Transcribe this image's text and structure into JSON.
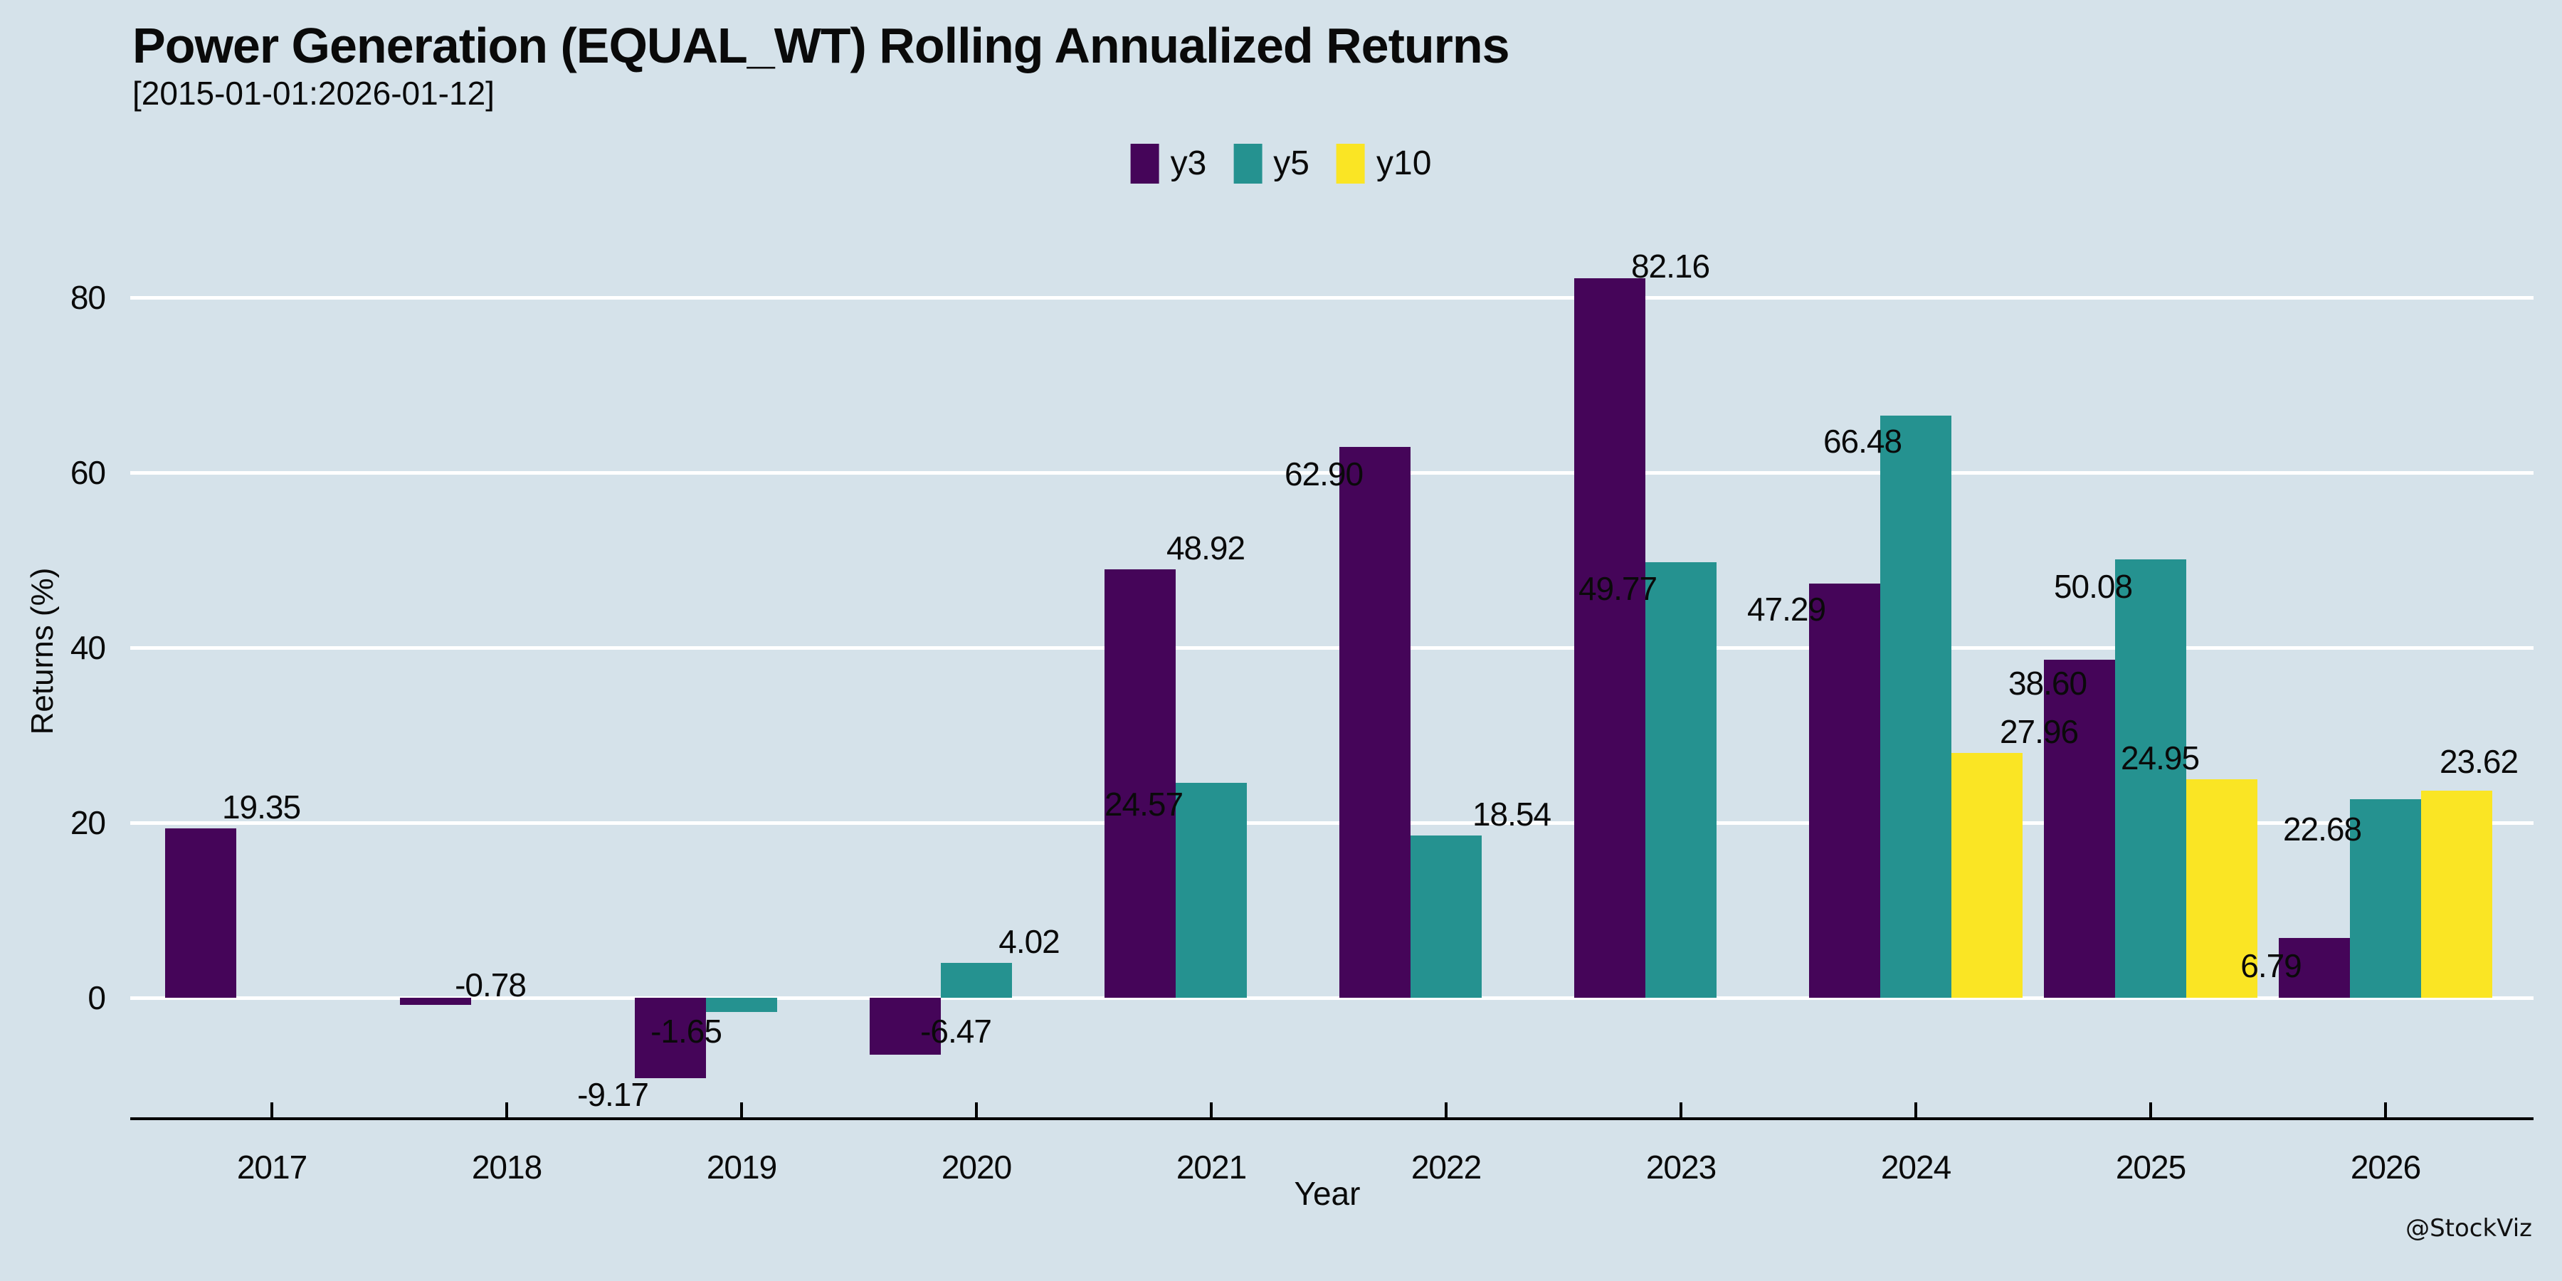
{
  "chart_data": {
    "type": "bar",
    "title": "Power Generation (EQUAL_WT) Rolling Annualized Returns",
    "subtitle": "[2015-01-01:2026-01-12]",
    "xlabel": "Year",
    "ylabel": "Returns (%)",
    "watermark": "@StockViz",
    "categories": [
      "2017",
      "2018",
      "2019",
      "2020",
      "2021",
      "2022",
      "2023",
      "2024",
      "2025",
      "2026"
    ],
    "yticks": [
      0,
      20,
      40,
      60,
      80
    ],
    "ylim": [
      -13.8,
      86
    ],
    "grid": "horizontal-white-lines",
    "legend_position": "top-center",
    "value_label_decimals": 2,
    "background_color": "#d5e2ea",
    "series": [
      {
        "name": "y3",
        "color": "#450559",
        "values": [
          19.35,
          -0.78,
          -9.17,
          -6.47,
          48.92,
          62.9,
          82.16,
          47.29,
          38.6,
          6.79
        ]
      },
      {
        "name": "y5",
        "color": "#259290",
        "values": [
          null,
          null,
          -1.65,
          4.02,
          24.57,
          18.54,
          49.77,
          66.48,
          50.08,
          22.68
        ]
      },
      {
        "name": "y10",
        "color": "#fae524",
        "values": [
          null,
          null,
          null,
          null,
          null,
          null,
          null,
          27.96,
          24.95,
          23.62
        ]
      }
    ]
  }
}
